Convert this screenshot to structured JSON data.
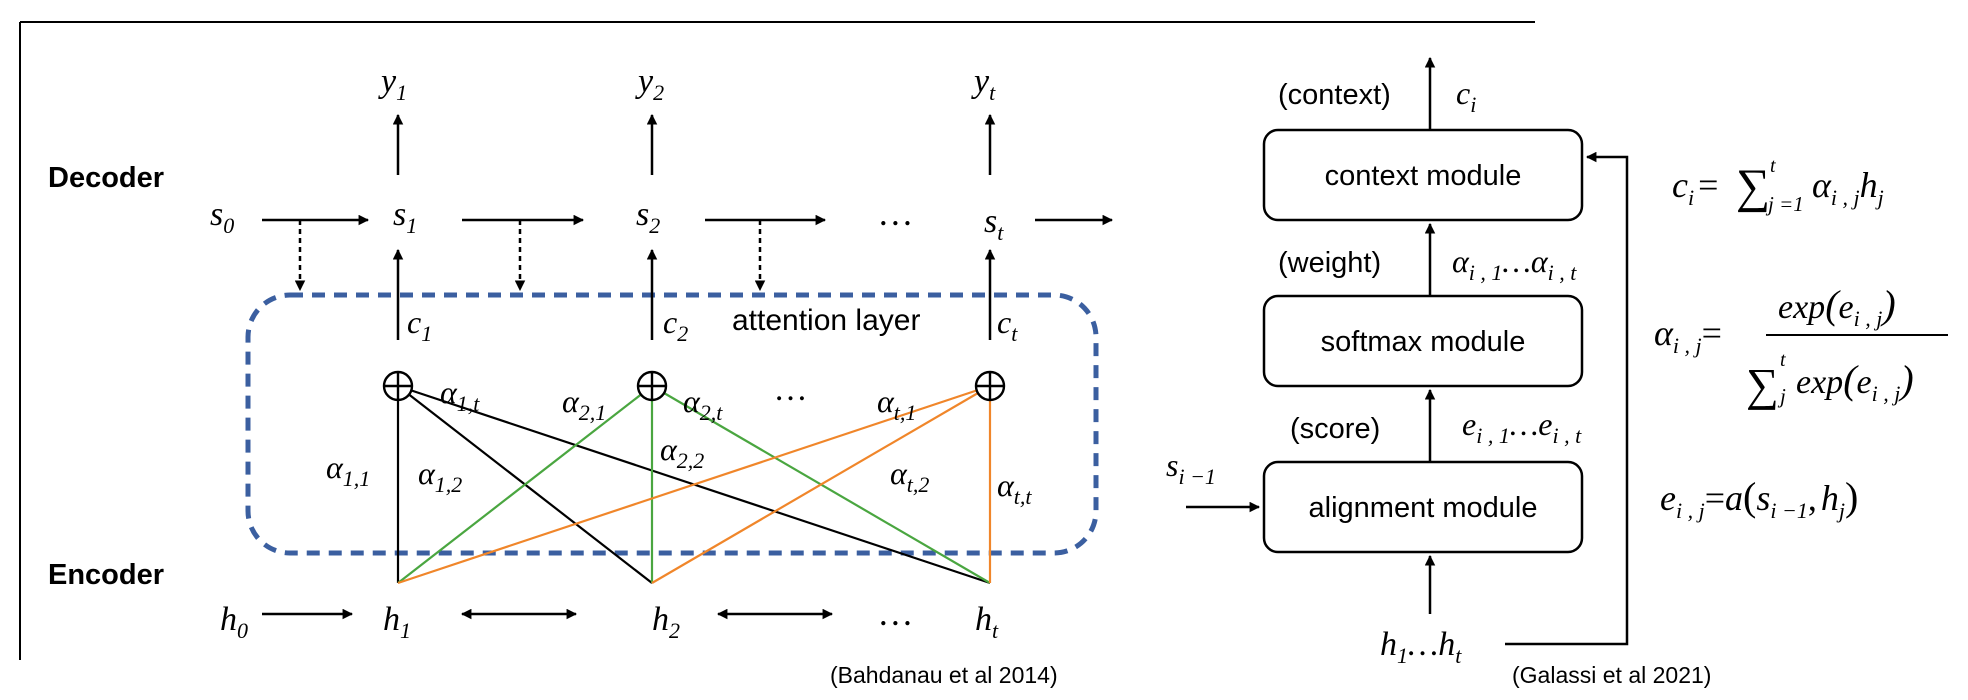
{
  "left_diagram": {
    "decoder_label": "Decoder",
    "encoder_label": "Encoder",
    "attention_layer_label": "attention layer",
    "ellipsis": "…",
    "y_labels": [
      {
        "b": "y",
        "s": "1"
      },
      {
        "b": "y",
        "s": "2"
      },
      {
        "b": "y",
        "s": "t"
      }
    ],
    "s_labels": [
      {
        "b": "s",
        "s": "0"
      },
      {
        "b": "s",
        "s": "1"
      },
      {
        "b": "s",
        "s": "2"
      },
      {
        "b": "s",
        "s": "t"
      }
    ],
    "c_labels": [
      {
        "b": "c",
        "s": "1"
      },
      {
        "b": "c",
        "s": "2"
      },
      {
        "b": "c",
        "s": "t"
      }
    ],
    "h_labels": [
      {
        "b": "h",
        "s": "0"
      },
      {
        "b": "h",
        "s": "1"
      },
      {
        "b": "h",
        "s": "2"
      },
      {
        "b": "h",
        "s": "t"
      }
    ],
    "alpha_labels": [
      {
        "b": "α",
        "s": "1,t"
      },
      {
        "b": "α",
        "s": "2,1"
      },
      {
        "b": "α",
        "s": "2,t"
      },
      {
        "b": "α",
        "s": "t,1"
      },
      {
        "b": "α",
        "s": "1,1"
      },
      {
        "b": "α",
        "s": "1,2"
      },
      {
        "b": "α",
        "s": "2,2"
      },
      {
        "b": "α",
        "s": "t,2"
      },
      {
        "b": "α",
        "s": "t,t"
      }
    ],
    "plus_symbol": "⊕",
    "citation": "(Bahdanau et al 2014)",
    "colors": {
      "dashed_box": "#3b5fa0",
      "h1_lines": "#000000",
      "h2_lines": "#4aa640",
      "ht_lines": "#f0862a"
    }
  },
  "right_diagram": {
    "modules": {
      "context": "context module",
      "softmax": "softmax module",
      "alignment": "alignment module"
    },
    "tags": {
      "context": "(context)",
      "weight": "(weight)",
      "score": "(score)"
    },
    "c_i": {
      "b": "c",
      "s": "i"
    },
    "alpha_range": {
      "b1": "α",
      "s1": "i , 1",
      "mid": "…",
      "b2": "α",
      "s2": "i , t"
    },
    "e_range": {
      "b1": "e",
      "s1": "i , 1",
      "mid": "…",
      "b2": "e",
      "s2": "i , t"
    },
    "s_prev": {
      "b": "s",
      "s": "i −1"
    },
    "h_range": {
      "b1": "h",
      "s1": "1",
      "mid": "…",
      "b2": "h",
      "s2": "t"
    },
    "citation": "(Galassi et al 2021)"
  },
  "equations": {
    "context": {
      "lhs_b": "c",
      "lhs_s": "i",
      "eq": "=",
      "sum": "∑",
      "sum_sup": "t",
      "sum_sub": "j =1",
      "b1": "α",
      "s1": "i , j",
      "b2": "h",
      "s2": "j"
    },
    "weight": {
      "lhs_b": "α",
      "lhs_s": "i , j",
      "eq": "=",
      "num": "exp",
      "num_arg_b": "e",
      "num_arg_s": "i , j",
      "den_sum": "∑",
      "den_sup": "t",
      "den_sub": "j",
      "den": "exp",
      "den_arg_b": "e",
      "den_arg_s": "i , j"
    },
    "score": {
      "lhs_b": "e",
      "lhs_s": "i , j",
      "eq": "=",
      "fn": "a",
      "arg1_b": "s",
      "arg1_s": "i −1",
      "sep": ",",
      "arg2_b": "h",
      "arg2_s": "j"
    }
  }
}
